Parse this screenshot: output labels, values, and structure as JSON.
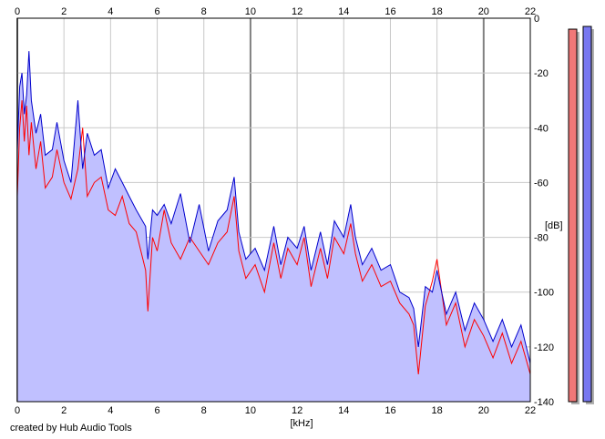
{
  "chart_data": {
    "type": "area",
    "title": "",
    "xlabel": "[kHz]",
    "ylabel": "[dB]",
    "xlim": [
      0,
      22
    ],
    "ylim": [
      -140,
      0
    ],
    "x_ticks": [
      0,
      2,
      4,
      6,
      8,
      10,
      12,
      14,
      16,
      18,
      20,
      22
    ],
    "y_ticks": [
      0,
      -20,
      -40,
      -60,
      -80,
      -100,
      -120,
      -140
    ],
    "grid": true,
    "x_axis_labels_positions": "top-and-bottom",
    "y_axis_labels_position": "right",
    "series": [
      {
        "color": "#ff0000",
        "x": [
          0.0,
          0.1,
          0.2,
          0.3,
          0.4,
          0.5,
          0.6,
          0.8,
          1.0,
          1.2,
          1.5,
          1.7,
          2.0,
          2.3,
          2.6,
          2.8,
          3.0,
          3.3,
          3.6,
          3.9,
          4.2,
          4.5,
          4.8,
          5.1,
          5.5,
          5.6,
          5.8,
          6.0,
          6.3,
          6.6,
          7.0,
          7.4,
          7.8,
          8.2,
          8.6,
          9.0,
          9.3,
          9.5,
          9.8,
          10.2,
          10.6,
          11.0,
          11.3,
          11.6,
          12.0,
          12.3,
          12.6,
          13.0,
          13.3,
          13.6,
          14.0,
          14.3,
          14.5,
          14.8,
          15.2,
          15.6,
          16.0,
          16.4,
          16.8,
          17.0,
          17.2,
          17.5,
          17.8,
          18.0,
          18.4,
          18.8,
          19.2,
          19.6,
          20.0,
          20.4,
          20.8,
          21.2,
          21.6,
          22.0
        ],
        "values": [
          -65,
          -40,
          -30,
          -45,
          -32,
          -50,
          -38,
          -55,
          -45,
          -62,
          -58,
          -48,
          -60,
          -66,
          -55,
          -40,
          -65,
          -60,
          -58,
          -70,
          -72,
          -65,
          -75,
          -78,
          -92,
          -107,
          -80,
          -85,
          -70,
          -82,
          -88,
          -80,
          -85,
          -90,
          -82,
          -78,
          -65,
          -85,
          -95,
          -90,
          -100,
          -82,
          -95,
          -84,
          -90,
          -80,
          -98,
          -84,
          -95,
          -80,
          -86,
          -75,
          -86,
          -96,
          -90,
          -98,
          -96,
          -104,
          -108,
          -112,
          -130,
          -105,
          -96,
          -88,
          -112,
          -104,
          -120,
          -110,
          -116,
          -124,
          -115,
          -126,
          -118,
          -130
        ]
      },
      {
        "color": "#0000cc",
        "x": [
          0.0,
          0.1,
          0.2,
          0.3,
          0.4,
          0.5,
          0.6,
          0.8,
          1.0,
          1.2,
          1.5,
          1.7,
          2.0,
          2.3,
          2.6,
          2.8,
          3.0,
          3.3,
          3.6,
          3.9,
          4.2,
          4.5,
          4.8,
          5.1,
          5.5,
          5.6,
          5.8,
          6.0,
          6.3,
          6.6,
          7.0,
          7.4,
          7.8,
          8.2,
          8.6,
          9.0,
          9.3,
          9.5,
          9.8,
          10.2,
          10.6,
          11.0,
          11.3,
          11.6,
          12.0,
          12.3,
          12.6,
          13.0,
          13.3,
          13.6,
          14.0,
          14.3,
          14.5,
          14.8,
          15.2,
          15.6,
          16.0,
          16.4,
          16.8,
          17.0,
          17.2,
          17.5,
          17.8,
          18.0,
          18.4,
          18.8,
          19.2,
          19.6,
          20.0,
          20.4,
          20.8,
          21.2,
          21.6,
          22.0
        ],
        "values": [
          -48,
          -25,
          -20,
          -35,
          -28,
          -12,
          -30,
          -42,
          -35,
          -50,
          -48,
          -38,
          -52,
          -60,
          -30,
          -55,
          -42,
          -50,
          -48,
          -62,
          -55,
          -60,
          -65,
          -70,
          -76,
          -88,
          -70,
          -72,
          -68,
          -75,
          -64,
          -82,
          -68,
          -85,
          -74,
          -70,
          -58,
          -78,
          -88,
          -84,
          -92,
          -76,
          -90,
          -80,
          -84,
          -76,
          -92,
          -78,
          -90,
          -74,
          -80,
          -68,
          -80,
          -90,
          -84,
          -92,
          -90,
          -100,
          -102,
          -106,
          -120,
          -98,
          -100,
          -92,
          -108,
          -100,
          -114,
          -104,
          -110,
          -118,
          -110,
          -120,
          -112,
          -126
        ]
      }
    ]
  },
  "level_meters": [
    {
      "channel": "left",
      "color": "#f07878",
      "level_db": -4
    },
    {
      "channel": "right",
      "color": "#7878f0",
      "level_db": -3
    }
  ],
  "footer": {
    "credit": "created by Hub Audio Tools"
  },
  "colors": {
    "fill": "#c0c0ff",
    "grid": "#c8c8c8",
    "grid_major": "#808080",
    "frame": "#000000"
  }
}
